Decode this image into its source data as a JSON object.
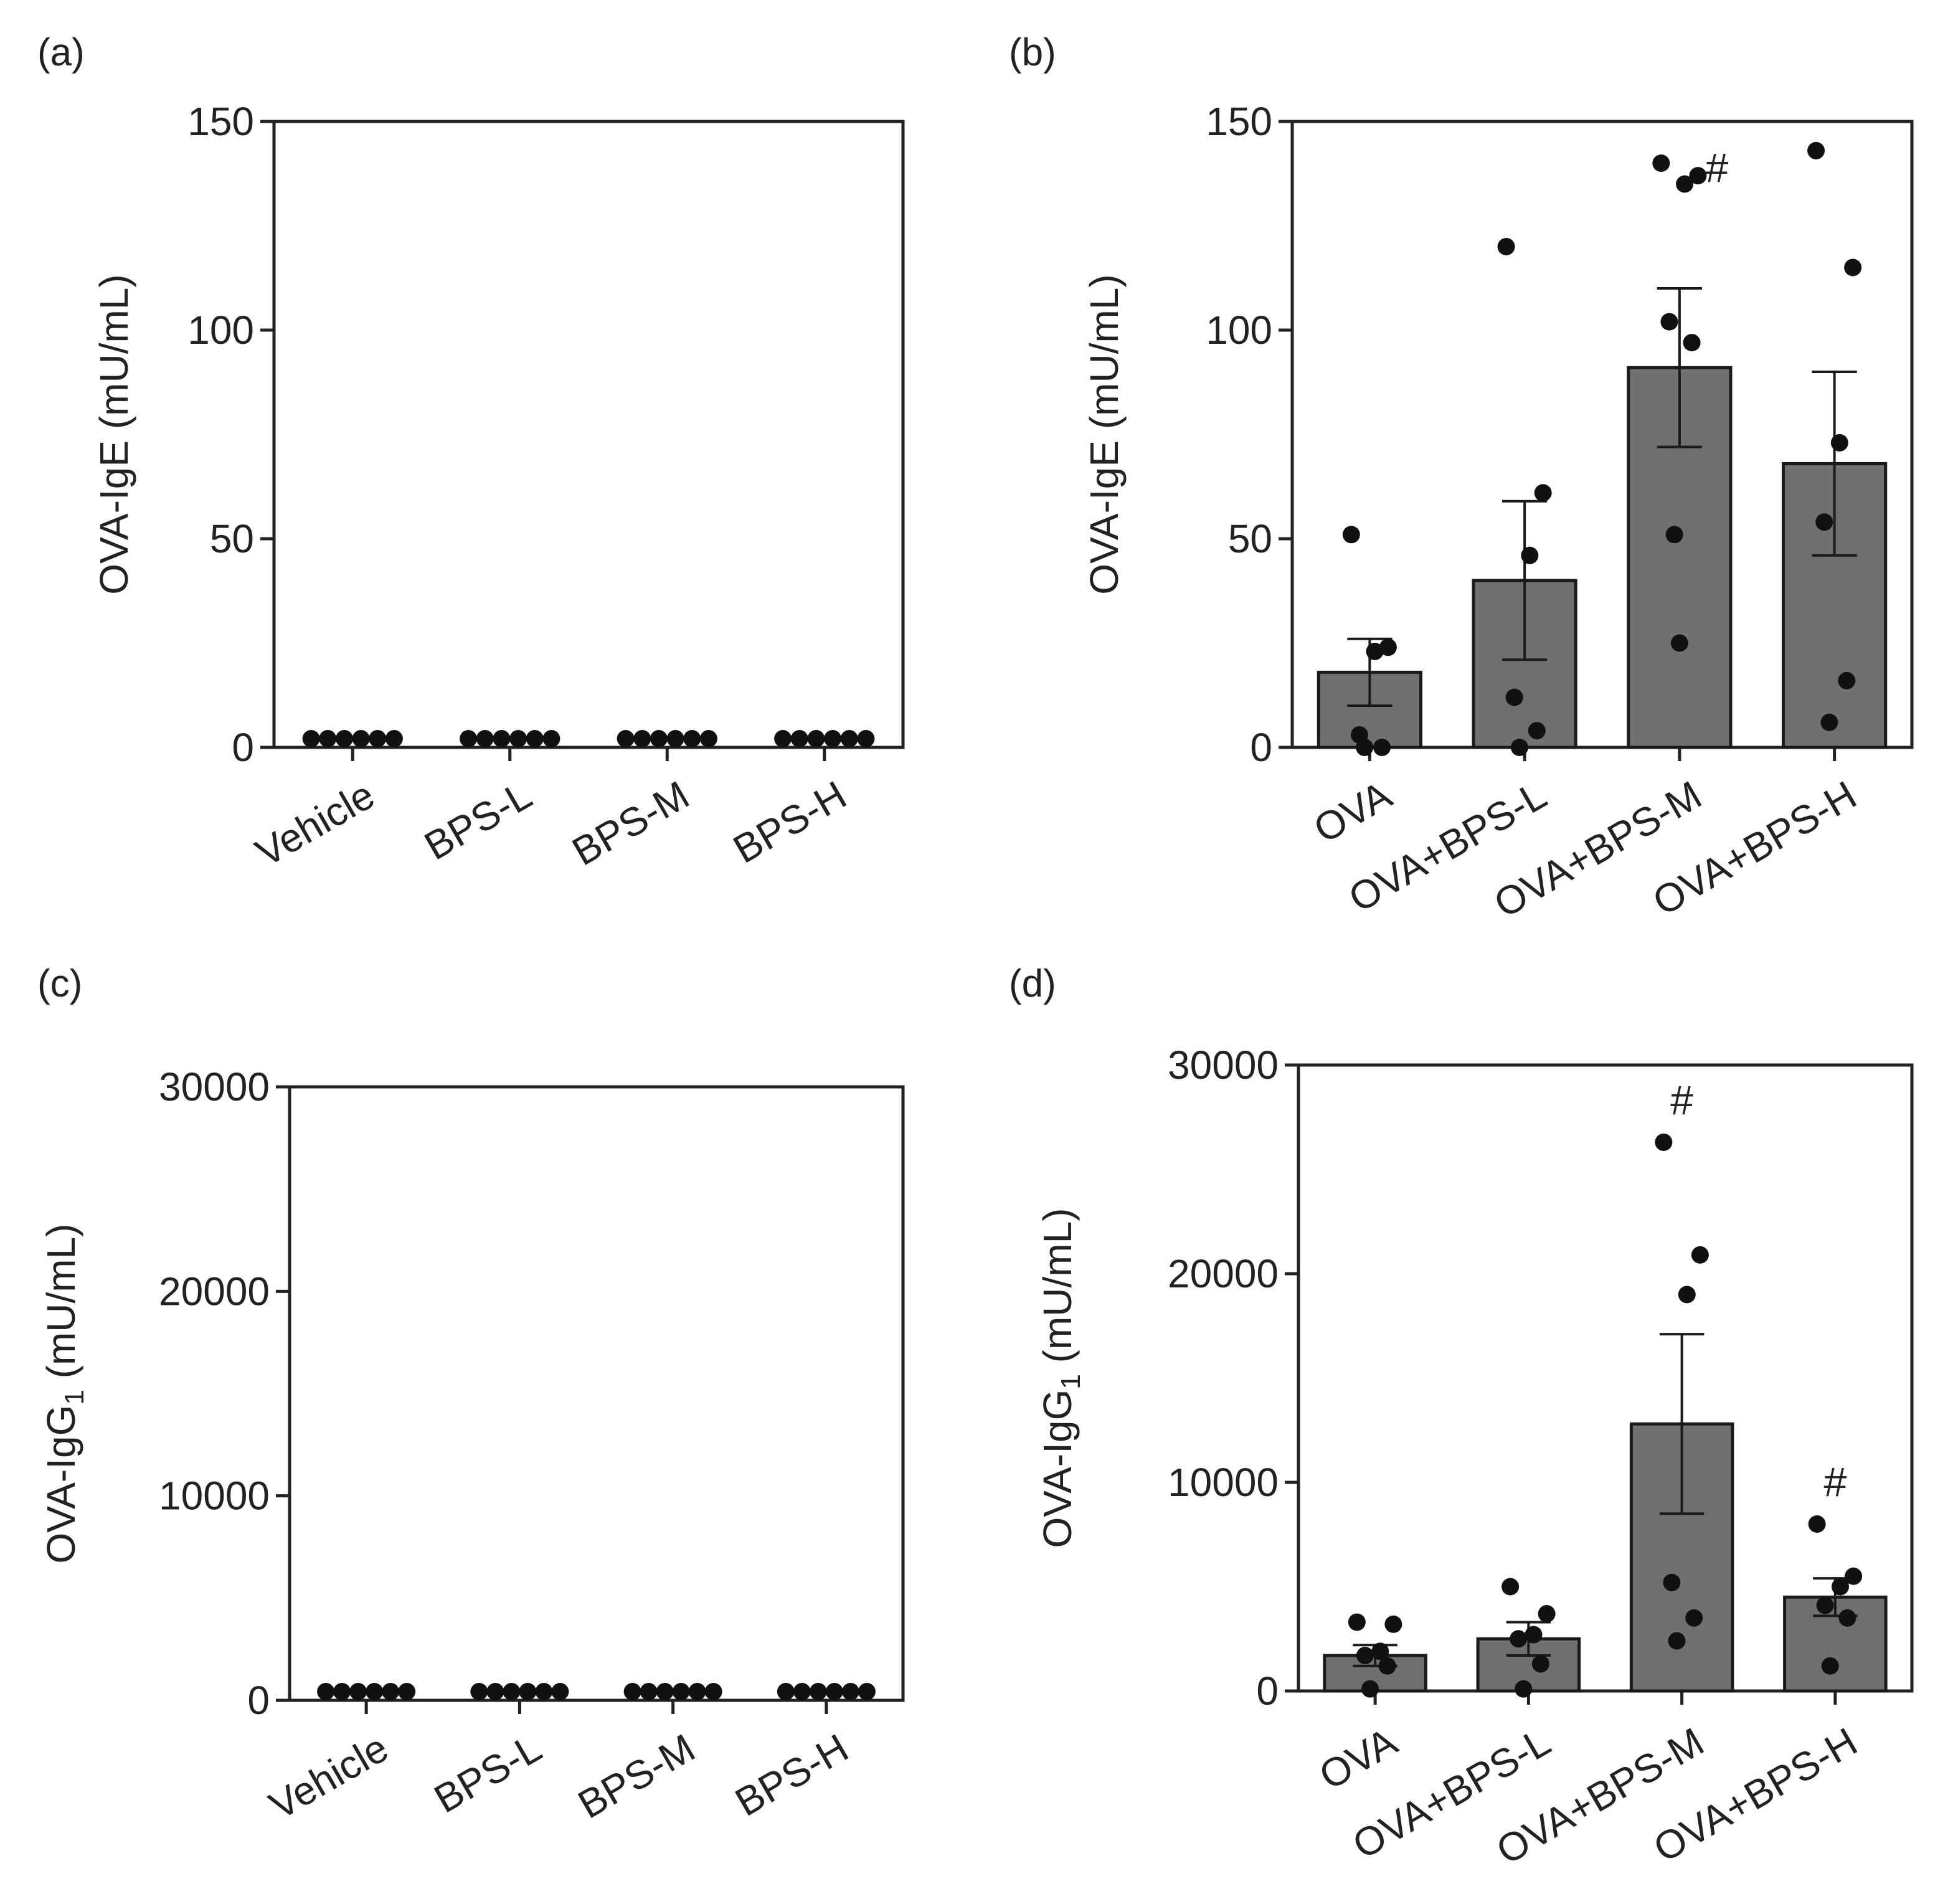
{
  "figure": {
    "panels": [
      "(a)",
      "(b)",
      "(c)",
      "(d)"
    ]
  },
  "chart_data": [
    {
      "panel": "(a)",
      "type": "bar",
      "ylabel_main": "OVA-IgE (mU/mL)",
      "ylabel_sub": "",
      "ylabel_tail": "",
      "ylim": [
        0,
        150
      ],
      "yticks": [
        0,
        50,
        100,
        150
      ],
      "categories": [
        "Vehicle",
        "BPS-L",
        "BPS-M",
        "BPS-H"
      ],
      "values": [
        0,
        0,
        0,
        0
      ],
      "sem": [
        0,
        0,
        0,
        0
      ],
      "points": [
        [
          0,
          0,
          0,
          0,
          0,
          0
        ],
        [
          0,
          0,
          0,
          0,
          0,
          0
        ],
        [
          0,
          0,
          0,
          0,
          0,
          0
        ],
        [
          0,
          0,
          0,
          0,
          0,
          0
        ]
      ],
      "annotations": [
        "",
        "",
        "",
        ""
      ]
    },
    {
      "panel": "(b)",
      "type": "bar",
      "ylabel_main": "OVA-IgE (mU/mL)",
      "ylabel_sub": "",
      "ylabel_tail": "",
      "ylim": [
        0,
        150
      ],
      "yticks": [
        0,
        50,
        100,
        150
      ],
      "categories": [
        "OVA",
        "OVA+BPS-L",
        "OVA+BPS-M",
        "OVA+BPS-H"
      ],
      "values": [
        18,
        40,
        91,
        68
      ],
      "sem": [
        8,
        19,
        19,
        22
      ],
      "points": [
        [
          51,
          24,
          23,
          3,
          0,
          0
        ],
        [
          120,
          61,
          46,
          12,
          4,
          0
        ],
        [
          140,
          137,
          135,
          102,
          97,
          51,
          25
        ],
        [
          143,
          115,
          73,
          54,
          16,
          6
        ]
      ],
      "annotations": [
        "",
        "",
        "#",
        ""
      ]
    },
    {
      "panel": "(c)",
      "type": "bar",
      "ylabel_main": "OVA-IgG",
      "ylabel_sub": "1",
      "ylabel_tail": " (mU/mL)",
      "ylim": [
        0,
        30000
      ],
      "yticks": [
        0,
        10000,
        20000,
        30000
      ],
      "categories": [
        "Vehicle",
        "BPS-L",
        "BPS-M",
        "BPS-H"
      ],
      "values": [
        0,
        0,
        0,
        0
      ],
      "sem": [
        0,
        0,
        0,
        0
      ],
      "points": [
        [
          0,
          0,
          0,
          0,
          0,
          0
        ],
        [
          0,
          0,
          0,
          0,
          0,
          0
        ],
        [
          0,
          0,
          0,
          0,
          0,
          0
        ],
        [
          0,
          0,
          0,
          0,
          0,
          0
        ]
      ],
      "annotations": [
        "",
        "",
        "",
        ""
      ]
    },
    {
      "panel": "(d)",
      "type": "bar",
      "ylabel_main": "OVA-IgG",
      "ylabel_sub": "1",
      "ylabel_tail": " (mU/mL)",
      "ylim": [
        0,
        30000
      ],
      "yticks": [
        0,
        10000,
        20000,
        30000
      ],
      "categories": [
        "OVA",
        "OVA+BPS-L",
        "OVA+BPS-M",
        "OVA+BPS-H"
      ],
      "values": [
        1700,
        2500,
        12800,
        4500
      ],
      "sem": [
        500,
        800,
        4300,
        900
      ],
      "points": [
        [
          3300,
          3200,
          1900,
          1700,
          1200,
          100
        ],
        [
          5000,
          3700,
          2700,
          2500,
          1300,
          100
        ],
        [
          26300,
          20900,
          19000,
          5200,
          3500,
          2400
        ],
        [
          8000,
          5500,
          5000,
          4100,
          3500,
          1200
        ]
      ],
      "annotations": [
        "",
        "",
        "#",
        "#"
      ]
    }
  ]
}
